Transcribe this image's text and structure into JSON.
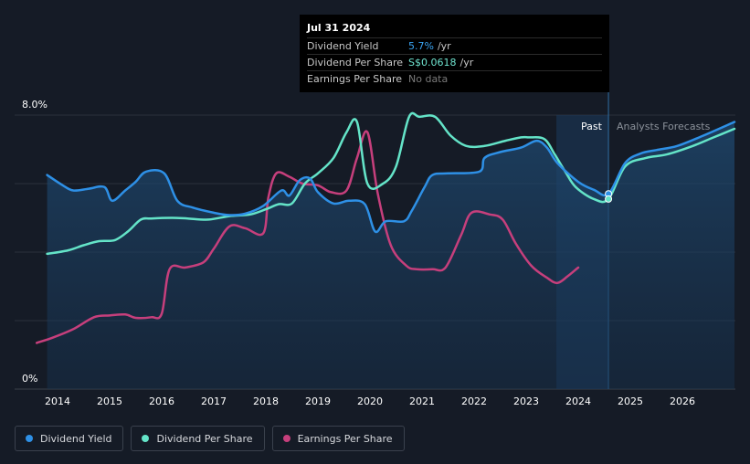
{
  "chart_data": {
    "type": "line",
    "ylabels": {
      "top": "8.0%",
      "bottom": "0%"
    },
    "ylim": [
      0,
      8.0
    ],
    "xlim": [
      2013.6,
      2027.0
    ],
    "x_ticks": [
      "2014",
      "2015",
      "2016",
      "2017",
      "2018",
      "2019",
      "2020",
      "2021",
      "2022",
      "2023",
      "2024",
      "2025",
      "2026"
    ],
    "past_label": "Past",
    "forecast_label": "Analysts Forecasts",
    "forecast_start": 2024.58,
    "forecast_shade_start": 2023.58,
    "series": [
      {
        "name": "Dividend Yield",
        "color": "#2e90e6",
        "values": [
          [
            2013.8,
            6.25
          ],
          [
            2014.1,
            5.95
          ],
          [
            2014.3,
            5.8
          ],
          [
            2014.6,
            5.85
          ],
          [
            2014.9,
            5.9
          ],
          [
            2015.05,
            5.5
          ],
          [
            2015.3,
            5.8
          ],
          [
            2015.5,
            6.05
          ],
          [
            2015.7,
            6.35
          ],
          [
            2016.05,
            6.3
          ],
          [
            2016.3,
            5.5
          ],
          [
            2016.6,
            5.3
          ],
          [
            2017.0,
            5.15
          ],
          [
            2017.3,
            5.08
          ],
          [
            2017.6,
            5.12
          ],
          [
            2017.95,
            5.35
          ],
          [
            2018.3,
            5.8
          ],
          [
            2018.45,
            5.65
          ],
          [
            2018.65,
            6.1
          ],
          [
            2018.85,
            6.15
          ],
          [
            2019.0,
            5.75
          ],
          [
            2019.3,
            5.42
          ],
          [
            2019.6,
            5.5
          ],
          [
            2019.9,
            5.4
          ],
          [
            2020.1,
            4.6
          ],
          [
            2020.3,
            4.9
          ],
          [
            2020.65,
            4.9
          ],
          [
            2020.8,
            5.2
          ],
          [
            2021.05,
            5.9
          ],
          [
            2021.2,
            6.25
          ],
          [
            2021.5,
            6.3
          ],
          [
            2022.1,
            6.35
          ],
          [
            2022.2,
            6.75
          ],
          [
            2022.5,
            6.92
          ],
          [
            2022.9,
            7.05
          ],
          [
            2023.2,
            7.25
          ],
          [
            2023.4,
            7.05
          ],
          [
            2023.6,
            6.6
          ],
          [
            2024.0,
            6.05
          ],
          [
            2024.3,
            5.82
          ],
          [
            2024.58,
            5.7
          ],
          [
            2024.9,
            6.6
          ],
          [
            2025.2,
            6.88
          ],
          [
            2025.5,
            6.98
          ],
          [
            2025.9,
            7.1
          ],
          [
            2026.4,
            7.4
          ],
          [
            2027.0,
            7.8
          ]
        ]
      },
      {
        "name": "Dividend Per Share",
        "color": "#64e4c8",
        "values": [
          [
            2013.8,
            3.95
          ],
          [
            2014.2,
            4.05
          ],
          [
            2014.5,
            4.2
          ],
          [
            2014.8,
            4.32
          ],
          [
            2015.1,
            4.35
          ],
          [
            2015.35,
            4.6
          ],
          [
            2015.6,
            4.95
          ],
          [
            2015.8,
            4.98
          ],
          [
            2016.2,
            5.0
          ],
          [
            2016.5,
            4.98
          ],
          [
            2016.9,
            4.95
          ],
          [
            2017.3,
            5.05
          ],
          [
            2017.7,
            5.1
          ],
          [
            2018.0,
            5.25
          ],
          [
            2018.25,
            5.4
          ],
          [
            2018.5,
            5.42
          ],
          [
            2018.75,
            6.0
          ],
          [
            2019.0,
            6.3
          ],
          [
            2019.3,
            6.75
          ],
          [
            2019.55,
            7.5
          ],
          [
            2019.75,
            7.8
          ],
          [
            2019.95,
            6.0
          ],
          [
            2020.25,
            6.0
          ],
          [
            2020.5,
            6.5
          ],
          [
            2020.75,
            7.95
          ],
          [
            2020.95,
            7.95
          ],
          [
            2021.25,
            7.95
          ],
          [
            2021.55,
            7.4
          ],
          [
            2021.85,
            7.1
          ],
          [
            2022.2,
            7.1
          ],
          [
            2022.6,
            7.25
          ],
          [
            2022.9,
            7.35
          ],
          [
            2023.05,
            7.35
          ],
          [
            2023.35,
            7.3
          ],
          [
            2023.55,
            6.85
          ],
          [
            2023.75,
            6.35
          ],
          [
            2023.95,
            5.9
          ],
          [
            2024.3,
            5.55
          ],
          [
            2024.58,
            5.55
          ],
          [
            2024.9,
            6.5
          ],
          [
            2025.3,
            6.75
          ],
          [
            2025.7,
            6.85
          ],
          [
            2026.2,
            7.1
          ],
          [
            2026.6,
            7.35
          ],
          [
            2027.0,
            7.6
          ]
        ]
      },
      {
        "name": "Earnings Per Share",
        "color": "#c63f7c",
        "values": [
          [
            2013.6,
            1.35
          ],
          [
            2013.9,
            1.5
          ],
          [
            2014.3,
            1.75
          ],
          [
            2014.7,
            2.1
          ],
          [
            2015.0,
            2.15
          ],
          [
            2015.3,
            2.18
          ],
          [
            2015.5,
            2.08
          ],
          [
            2015.8,
            2.1
          ],
          [
            2016.0,
            2.2
          ],
          [
            2016.15,
            3.5
          ],
          [
            2016.45,
            3.55
          ],
          [
            2016.8,
            3.7
          ],
          [
            2017.0,
            4.1
          ],
          [
            2017.3,
            4.75
          ],
          [
            2017.6,
            4.7
          ],
          [
            2017.95,
            4.55
          ],
          [
            2018.05,
            5.6
          ],
          [
            2018.2,
            6.3
          ],
          [
            2018.45,
            6.2
          ],
          [
            2018.7,
            6.0
          ],
          [
            2019.0,
            5.95
          ],
          [
            2019.25,
            5.75
          ],
          [
            2019.55,
            5.8
          ],
          [
            2019.75,
            6.75
          ],
          [
            2019.95,
            7.5
          ],
          [
            2020.15,
            5.7
          ],
          [
            2020.4,
            4.2
          ],
          [
            2020.7,
            3.6
          ],
          [
            2020.9,
            3.5
          ],
          [
            2021.2,
            3.5
          ],
          [
            2021.45,
            3.55
          ],
          [
            2021.75,
            4.5
          ],
          [
            2021.95,
            5.15
          ],
          [
            2022.3,
            5.1
          ],
          [
            2022.55,
            4.95
          ],
          [
            2022.8,
            4.25
          ],
          [
            2023.1,
            3.6
          ],
          [
            2023.4,
            3.25
          ],
          [
            2023.6,
            3.1
          ],
          [
            2023.8,
            3.3
          ],
          [
            2024.0,
            3.55
          ]
        ]
      }
    ],
    "highlight": {
      "x": 2024.58,
      "series_values": [
        5.7,
        5.55
      ]
    }
  },
  "tooltip": {
    "date": "Jul 31 2024",
    "rows": [
      {
        "label": "Dividend Yield",
        "value": "5.7%",
        "unit": "/yr"
      },
      {
        "label": "Dividend Per Share",
        "value": "S$0.0618",
        "unit": "/yr"
      },
      {
        "label": "Earnings Per Share",
        "value": "No data"
      }
    ]
  },
  "legend": [
    {
      "label": "Dividend Yield",
      "color": "#2e90e6"
    },
    {
      "label": "Dividend Per Share",
      "color": "#64e4c8"
    },
    {
      "label": "Earnings Per Share",
      "color": "#c63f7c"
    }
  ]
}
